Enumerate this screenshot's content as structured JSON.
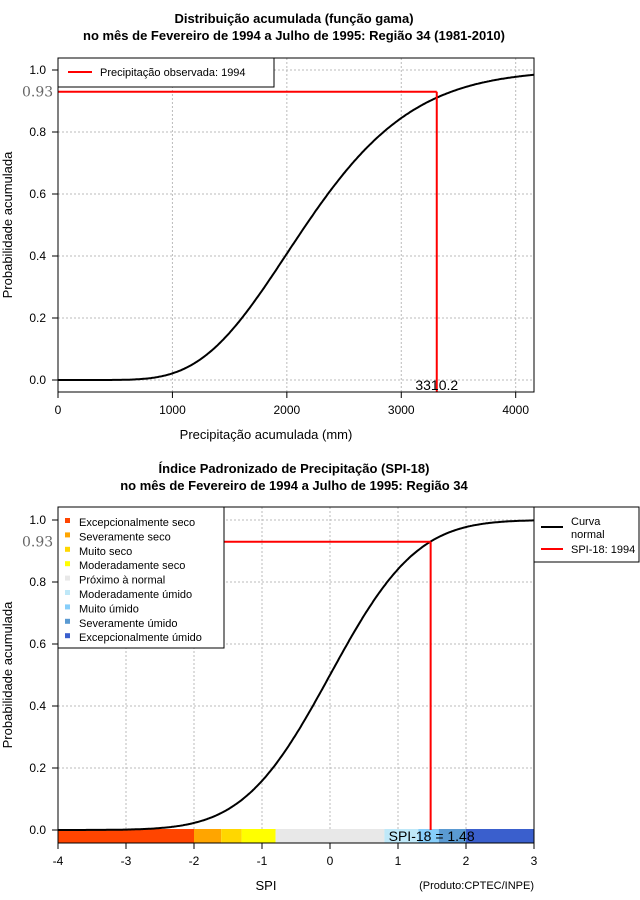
{
  "chart_data": [
    {
      "type": "line",
      "title": "Distribuição acumulada (função gama)",
      "subtitle": "no mês de Fevereiro de 1994 a Julho de 1995: Região 34 (1981-2010)",
      "xlabel": "Precipitação acumulada (mm)",
      "ylabel": "Probabilidade acumulada",
      "xlim": [
        0,
        4160
      ],
      "ylim": [
        0,
        1
      ],
      "xticks": [
        "0",
        "1000",
        "2000",
        "3000",
        "4000"
      ],
      "yticks": [
        "0.0",
        "0.2",
        "0.4",
        "0.6",
        "0.8",
        "1.0"
      ],
      "distribution": {
        "kind": "gamma",
        "shape": 9,
        "scale": 250
      },
      "observed": {
        "x": 3310.2,
        "x_label": "3310.2",
        "y": 0.93,
        "y_label": "0.93"
      },
      "legend": {
        "placement": "top-left",
        "entries": [
          "Precipitação observada: 1994"
        ]
      },
      "grid": true
    },
    {
      "type": "line",
      "title": "Índice Padronizado de Precipitação (SPI-18)",
      "subtitle": "no mês de Fevereiro de 1994 a Julho de 1995: Região 34",
      "xlabel": "SPI",
      "ylabel": "Probabilidade acumulada",
      "xlim": [
        -4,
        3
      ],
      "ylim": [
        0,
        1
      ],
      "xticks": [
        "-4",
        "-3",
        "-2",
        "-1",
        "0",
        "1",
        "2",
        "3"
      ],
      "yticks": [
        "0.0",
        "0.2",
        "0.4",
        "0.6",
        "0.8",
        "1.0"
      ],
      "distribution": {
        "kind": "normal",
        "mean": 0,
        "sd": 1
      },
      "observed": {
        "x": 1.48,
        "y": 0.93,
        "y_label": "0.93",
        "label": "SPI-18 = 1.48"
      },
      "legend_right": {
        "entries": [
          "Curva normal",
          "SPI-18: 1994"
        ]
      },
      "categories": [
        {
          "name": "Excepcionalmente seco",
          "from": -4,
          "to": -2,
          "color": "#ff4500"
        },
        {
          "name": "Severamente seco",
          "from": -2,
          "to": -1.6,
          "color": "#ffa500"
        },
        {
          "name": "Muito seco",
          "from": -1.6,
          "to": -1.3,
          "color": "#ffd700"
        },
        {
          "name": "Moderadamente seco",
          "from": -1.3,
          "to": -0.8,
          "color": "#ffff00"
        },
        {
          "name": "Próximo à normal",
          "from": -0.8,
          "to": 0.8,
          "color": "#e8e8e8"
        },
        {
          "name": "Moderadamente úmido",
          "from": 0.8,
          "to": 1.3,
          "color": "#bfe8f8"
        },
        {
          "name": "Muito úmido",
          "from": 1.3,
          "to": 1.6,
          "color": "#87cefa"
        },
        {
          "name": "Severamente úmido",
          "from": 1.6,
          "to": 2.0,
          "color": "#5a9ad2"
        },
        {
          "name": "Excepcionalmente úmido",
          "from": 2.0,
          "to": 3.0,
          "color": "#3a5fcd"
        }
      ],
      "credit": "(Produto:CPTEC/INPE)",
      "grid": true
    }
  ]
}
